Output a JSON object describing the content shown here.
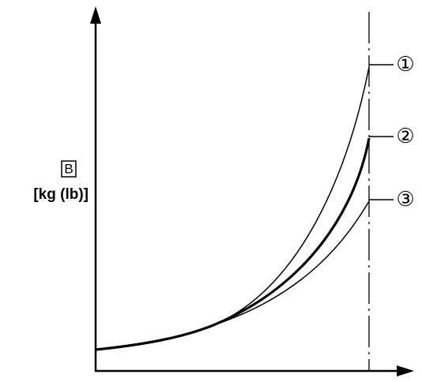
{
  "axis_label": {
    "box_letter": "B",
    "unit": "[kg (lb)]"
  },
  "curves": [
    {
      "label": "①"
    },
    {
      "label": "②"
    },
    {
      "label": "③"
    }
  ]
}
